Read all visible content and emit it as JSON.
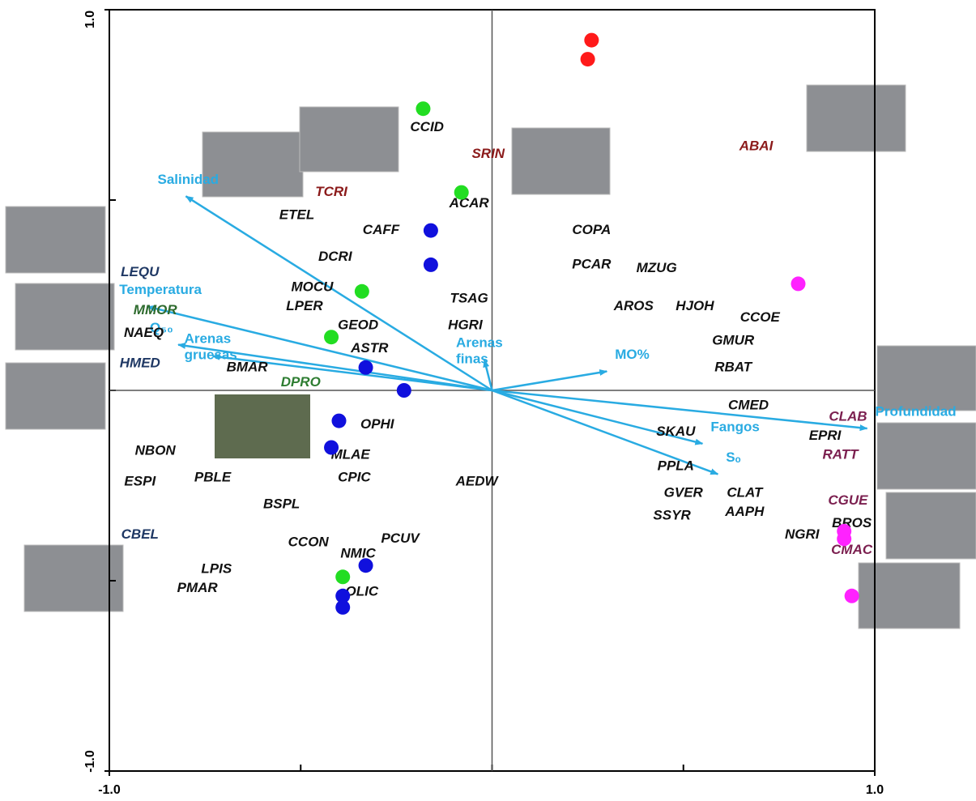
{
  "chart_data": {
    "type": "scatter",
    "xlim": [
      -1,
      1
    ],
    "ylim": [
      -1,
      1
    ],
    "xticks": [
      {
        "value": -1,
        "label": "-1.0"
      },
      {
        "value": 1,
        "label": "1.0"
      }
    ],
    "yticks": [
      {
        "value": -1,
        "label": "-1.0"
      },
      {
        "value": 1,
        "label": "1.0"
      }
    ],
    "minor_ticks": [
      -0.5,
      0,
      0.5
    ],
    "series": [
      {
        "color": "#ff1a1a",
        "x": [
          0.26,
          0.25
        ],
        "values": [
          0.92,
          0.87
        ]
      },
      {
        "color": "#22dd22",
        "x": [
          -0.18,
          -0.08,
          -0.34,
          -0.42,
          -0.39
        ],
        "values": [
          0.74,
          0.52,
          0.26,
          0.14,
          -0.49
        ]
      },
      {
        "color": "#1010dd",
        "x": [
          -0.16,
          -0.16,
          -0.33,
          -0.23,
          -0.4,
          -0.42,
          -0.33,
          -0.39,
          -0.39
        ],
        "values": [
          0.42,
          0.33,
          0.06,
          0.0,
          -0.08,
          -0.15,
          -0.46,
          -0.54,
          -0.57
        ]
      },
      {
        "color": "#ff22ff",
        "x": [
          0.8,
          0.92,
          0.92,
          0.94
        ],
        "values": [
          0.28,
          -0.37,
          -0.39,
          -0.54
        ]
      }
    ],
    "arrow_color": "#29abe2",
    "arrows": [
      {
        "label": "Salinidad",
        "x": -0.8,
        "y": 0.51
      },
      {
        "label": "Temperatura",
        "x": -0.9,
        "y": 0.22
      },
      {
        "label": "Q₅₀",
        "x": -0.82,
        "y": 0.12
      },
      {
        "label": "Arenas gruesas",
        "x": -0.73,
        "y": 0.09
      },
      {
        "label": "Arenas finas",
        "x": -0.02,
        "y": 0.08
      },
      {
        "label": "MO%",
        "x": 0.3,
        "y": 0.05
      },
      {
        "label": "Profundidad",
        "x": 0.98,
        "y": -0.1
      },
      {
        "label": "Fangos",
        "x": 0.55,
        "y": -0.14
      },
      {
        "label": "Sₒ",
        "x": 0.59,
        "y": -0.22
      }
    ],
    "species": [
      {
        "label": "CCID",
        "x": -0.17,
        "y": 0.69,
        "color": "#111111"
      },
      {
        "label": "SRIN",
        "x": -0.01,
        "y": 0.62,
        "color": "#8b1a1a"
      },
      {
        "label": "ABAI",
        "x": 0.69,
        "y": 0.64,
        "color": "#8b1a1a"
      },
      {
        "label": "TCRI",
        "x": -0.42,
        "y": 0.52,
        "color": "#8b1a1a"
      },
      {
        "label": "ACAR",
        "x": -0.06,
        "y": 0.49,
        "color": "#111111"
      },
      {
        "label": "ETEL",
        "x": -0.51,
        "y": 0.46,
        "color": "#111111"
      },
      {
        "label": "CAFF",
        "x": -0.29,
        "y": 0.42,
        "color": "#111111"
      },
      {
        "label": "COPA",
        "x": 0.26,
        "y": 0.42,
        "color": "#111111"
      },
      {
        "label": "DCRI",
        "x": -0.41,
        "y": 0.35,
        "color": "#111111"
      },
      {
        "label": "PCAR",
        "x": 0.26,
        "y": 0.33,
        "color": "#111111"
      },
      {
        "label": "MZUG",
        "x": 0.43,
        "y": 0.32,
        "color": "#111111"
      },
      {
        "label": "MOCU",
        "x": -0.47,
        "y": 0.27,
        "color": "#111111"
      },
      {
        "label": "TSAG",
        "x": -0.06,
        "y": 0.24,
        "color": "#111111"
      },
      {
        "label": "LEQU",
        "x": -0.92,
        "y": 0.31,
        "color": "#1f3864"
      },
      {
        "label": "MMOR",
        "x": -0.88,
        "y": 0.21,
        "color": "#2e6b2e"
      },
      {
        "label": "LPER",
        "x": -0.49,
        "y": 0.22,
        "color": "#111111"
      },
      {
        "label": "AROS",
        "x": 0.37,
        "y": 0.22,
        "color": "#111111"
      },
      {
        "label": "HJOH",
        "x": 0.53,
        "y": 0.22,
        "color": "#111111"
      },
      {
        "label": "CCOE",
        "x": 0.7,
        "y": 0.19,
        "color": "#111111"
      },
      {
        "label": "NAEQ",
        "x": -0.91,
        "y": 0.15,
        "color": "#111111"
      },
      {
        "label": "GEOD",
        "x": -0.35,
        "y": 0.17,
        "color": "#111111"
      },
      {
        "label": "HGRI",
        "x": -0.07,
        "y": 0.17,
        "color": "#111111"
      },
      {
        "label": "GMUR",
        "x": 0.63,
        "y": 0.13,
        "color": "#111111"
      },
      {
        "label": "ASTR",
        "x": -0.32,
        "y": 0.11,
        "color": "#111111"
      },
      {
        "label": "HMED",
        "x": -0.92,
        "y": 0.07,
        "color": "#1f3864"
      },
      {
        "label": "BMAR",
        "x": -0.64,
        "y": 0.06,
        "color": "#111111"
      },
      {
        "label": "DPRO",
        "x": -0.5,
        "y": 0.02,
        "color": "#2e7d32"
      },
      {
        "label": "RBAT",
        "x": 0.63,
        "y": 0.06,
        "color": "#111111"
      },
      {
        "label": "CMED",
        "x": 0.67,
        "y": -0.04,
        "color": "#111111"
      },
      {
        "label": "OPHI",
        "x": -0.3,
        "y": -0.09,
        "color": "#111111"
      },
      {
        "label": "CLAB",
        "x": 0.93,
        "y": -0.07,
        "color": "#7b1f4f"
      },
      {
        "label": "SKAU",
        "x": 0.48,
        "y": -0.11,
        "color": "#111111"
      },
      {
        "label": "EPRI",
        "x": 0.87,
        "y": -0.12,
        "color": "#111111"
      },
      {
        "label": "NBON",
        "x": -0.88,
        "y": -0.16,
        "color": "#111111"
      },
      {
        "label": "MLAE",
        "x": -0.37,
        "y": -0.17,
        "color": "#111111"
      },
      {
        "label": "RATT",
        "x": 0.91,
        "y": -0.17,
        "color": "#7b1f4f"
      },
      {
        "label": "PPLA",
        "x": 0.48,
        "y": -0.2,
        "color": "#111111"
      },
      {
        "label": "ESPI",
        "x": -0.92,
        "y": -0.24,
        "color": "#111111"
      },
      {
        "label": "PBLE",
        "x": -0.73,
        "y": -0.23,
        "color": "#111111"
      },
      {
        "label": "CPIC",
        "x": -0.36,
        "y": -0.23,
        "color": "#111111"
      },
      {
        "label": "AEDW",
        "x": -0.04,
        "y": -0.24,
        "color": "#111111"
      },
      {
        "label": "GVER",
        "x": 0.5,
        "y": -0.27,
        "color": "#111111"
      },
      {
        "label": "CLAT",
        "x": 0.66,
        "y": -0.27,
        "color": "#111111"
      },
      {
        "label": "BSPL",
        "x": -0.55,
        "y": -0.3,
        "color": "#111111"
      },
      {
        "label": "CGUE",
        "x": 0.93,
        "y": -0.29,
        "color": "#7b1f4f"
      },
      {
        "label": "SSYR",
        "x": 0.47,
        "y": -0.33,
        "color": "#111111"
      },
      {
        "label": "AAPH",
        "x": 0.66,
        "y": -0.32,
        "color": "#111111"
      },
      {
        "label": "BROS",
        "x": 0.94,
        "y": -0.35,
        "color": "#111111"
      },
      {
        "label": "NGRI",
        "x": 0.81,
        "y": -0.38,
        "color": "#111111"
      },
      {
        "label": "CBEL",
        "x": -0.92,
        "y": -0.38,
        "color": "#1f3864"
      },
      {
        "label": "PCUV",
        "x": -0.24,
        "y": -0.39,
        "color": "#111111"
      },
      {
        "label": "CCON",
        "x": -0.48,
        "y": -0.4,
        "color": "#111111"
      },
      {
        "label": "CMAC",
        "x": 0.94,
        "y": -0.42,
        "color": "#7b1f4f"
      },
      {
        "label": "NMIC",
        "x": -0.35,
        "y": -0.43,
        "color": "#111111"
      },
      {
        "label": "LPIS",
        "x": -0.72,
        "y": -0.47,
        "color": "#111111"
      },
      {
        "label": "PMAR",
        "x": -0.77,
        "y": -0.52,
        "color": "#111111"
      },
      {
        "label": "OLIC",
        "x": -0.34,
        "y": -0.53,
        "color": "#111111"
      }
    ]
  }
}
